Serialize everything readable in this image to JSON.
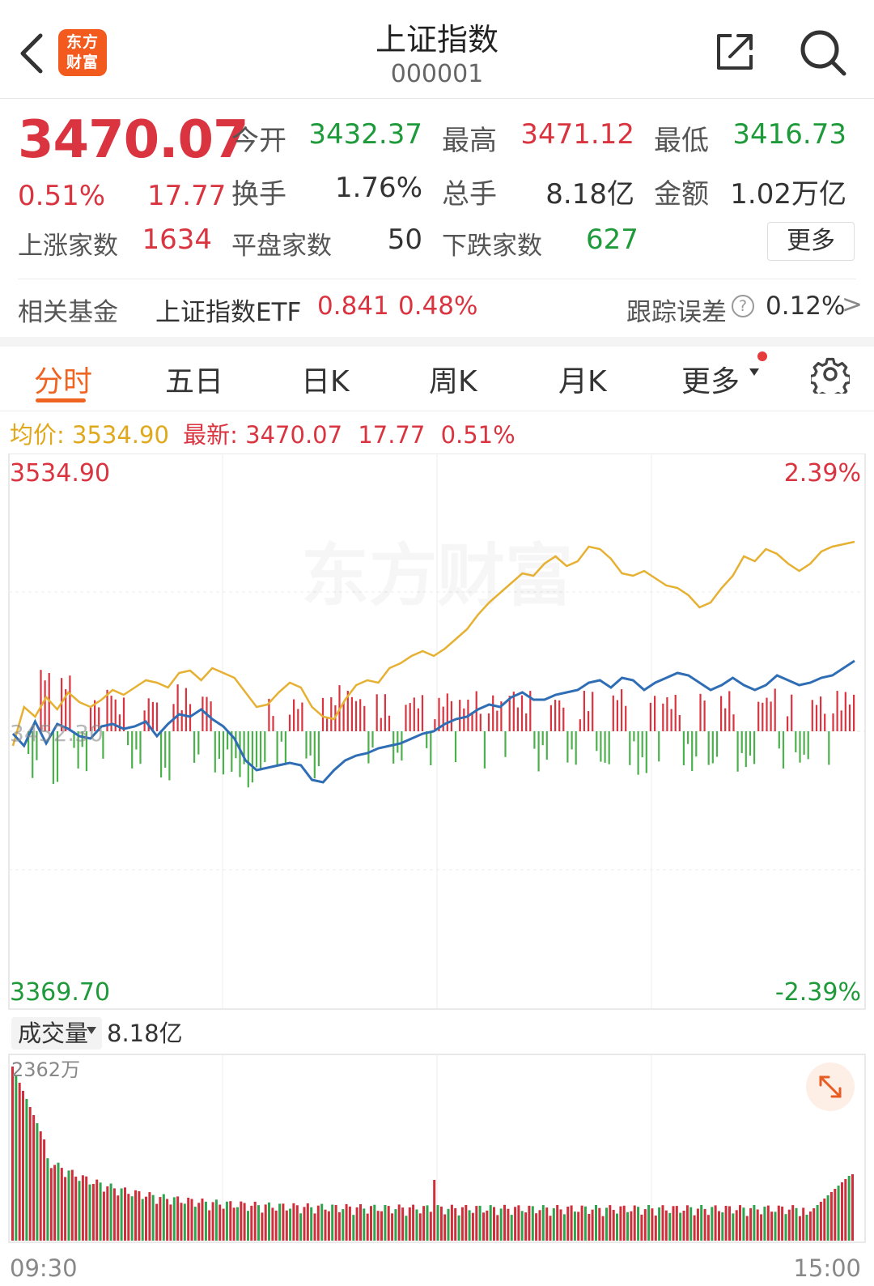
{
  "header": {
    "back_icon": "chevron-left-icon",
    "logo_line1": "东方",
    "logo_line2": "财富",
    "title": "上证指数",
    "code": "000001",
    "share_icon": "share-icon",
    "search_icon": "search-icon"
  },
  "quote": {
    "price": "3470.07",
    "change_pct": "0.51%",
    "change": "17.77",
    "open_label": "今开",
    "open": "3432.37",
    "high_label": "最高",
    "high": "3471.12",
    "low_label": "最低",
    "low": "3416.73",
    "turnover_label": "换手",
    "turnover": "1.76%",
    "volume_label": "总手",
    "volume": "8.18亿",
    "amount_label": "金额",
    "amount": "1.02万亿",
    "up_label": "上涨家数",
    "up_count": "1634",
    "flat_label": "平盘家数",
    "flat_count": "50",
    "down_label": "下跌家数",
    "down_count": "627",
    "more_button": "更多"
  },
  "fund": {
    "label": "相关基金",
    "name": "上证指数ETF",
    "price": "0.841",
    "pct": "0.48%",
    "track_label": "跟踪误差",
    "track_value": "0.12%",
    "arrow": ">"
  },
  "tabs": [
    {
      "label": "分时",
      "active": true
    },
    {
      "label": "五日",
      "active": false
    },
    {
      "label": "日K",
      "active": false
    },
    {
      "label": "周K",
      "active": false
    },
    {
      "label": "月K",
      "active": false
    },
    {
      "label": "更多",
      "active": false
    }
  ],
  "info_line": {
    "avg_label": "均价:",
    "avg_value": "3534.90",
    "latest_label": "最新:",
    "latest_value": "3470.07",
    "change": "17.77",
    "pct": "0.51%"
  },
  "colors": {
    "up": "#d9343f",
    "down": "#1e9a3a",
    "avg_line": "#e0a81c",
    "price_line": "#2f6db5",
    "accent": "#f06421"
  },
  "chart_data": {
    "type": "line",
    "y_top_label": "3534.90",
    "y_mid_label": "3452.30",
    "y_bottom_label": "3369.70",
    "pct_top_label": "2.39%",
    "pct_bottom_label": "-2.39%",
    "watermark": "东方财富",
    "ylim": [
      3369.7,
      3534.9
    ],
    "yellow_series_pct": [
      -0.6,
      1.0,
      0.6,
      1.4,
      0.9,
      1.6,
      1.2,
      1.0,
      1.3,
      1.7,
      1.5,
      1.8,
      2.1,
      2.0,
      1.8,
      2.4,
      2.5,
      2.1,
      2.6,
      2.4,
      2.2,
      1.6,
      1.0,
      1.1,
      1.6,
      2.0,
      1.8,
      1.0,
      0.6,
      0.5,
      1.3,
      1.9,
      2.1,
      2.0,
      2.6,
      2.8,
      3.1,
      3.3,
      3.1,
      3.4,
      3.8,
      4.2,
      4.8,
      5.3,
      5.7,
      6.1,
      6.5,
      6.4,
      6.9,
      7.2,
      6.8,
      7.0,
      7.6,
      7.5,
      7.1,
      6.5,
      6.4,
      6.6,
      6.3,
      6.0,
      5.9,
      5.6,
      5.1,
      5.3,
      5.9,
      6.4,
      7.2,
      7.0,
      7.5,
      7.3,
      6.9,
      6.6,
      6.9,
      7.4,
      7.6,
      7.7,
      7.8
    ],
    "blue_series_pct": [
      -0.1,
      -0.6,
      0.4,
      -0.5,
      0.3,
      0.1,
      -0.2,
      -0.3,
      0.2,
      0.3,
      0.1,
      0.2,
      0.4,
      -0.2,
      0.3,
      0.7,
      0.6,
      0.9,
      0.5,
      0.2,
      -0.3,
      -1.2,
      -1.6,
      -1.5,
      -1.4,
      -1.3,
      -1.4,
      -2.0,
      -2.1,
      -1.6,
      -1.2,
      -1.0,
      -0.9,
      -0.7,
      -0.6,
      -0.5,
      -0.3,
      -0.1,
      0.0,
      0.3,
      0.5,
      0.6,
      0.9,
      1.1,
      1.0,
      1.4,
      1.6,
      1.3,
      1.3,
      1.5,
      1.6,
      1.7,
      2.0,
      2.1,
      1.8,
      2.2,
      2.1,
      1.7,
      2.0,
      2.2,
      2.4,
      2.3,
      2.0,
      1.7,
      1.9,
      2.2,
      1.9,
      1.7,
      1.9,
      2.3,
      2.1,
      1.9,
      2.0,
      2.2,
      2.3,
      2.6,
      2.9
    ],
    "volume_panel": {
      "label": "成交量",
      "total": "8.18亿",
      "max_label": "2362万",
      "start_time": "09:30",
      "end_time": "15:00",
      "expand_icon": "expand-icon"
    }
  }
}
